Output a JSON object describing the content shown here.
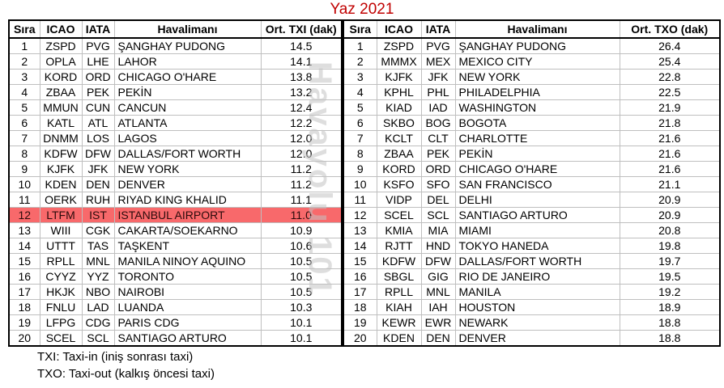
{
  "title": "Yaz 2021",
  "colors": {
    "title": "#C00000",
    "highlight_bg": "#F8696B",
    "gridline": "#BFBFBF",
    "border": "#000000"
  },
  "watermark": "Havayolu 101",
  "footnotes": [
    "TXI: Taxi-in (iniş sonrası taxi)",
    "TXO: Taxi-out (kalkış öncesi taxi)"
  ],
  "chart_data": [
    {
      "type": "table",
      "name": "taxi-in-ranking",
      "columns": [
        "Sıra",
        "ICAO",
        "IATA",
        "Havalimanı",
        "Ort. TXI (dak)"
      ],
      "rows": [
        [
          "1",
          "ZSPD",
          "PVG",
          "ŞANGHAY PUDONG",
          "14.5"
        ],
        [
          "2",
          "OPLA",
          "LHE",
          "LAHOR",
          "14.1"
        ],
        [
          "3",
          "KORD",
          "ORD",
          "CHICAGO O'HARE",
          "13.8"
        ],
        [
          "4",
          "ZBAA",
          "PEK",
          "PEKİN",
          "13.2"
        ],
        [
          "5",
          "MMUN",
          "CUN",
          "CANCUN",
          "12.4"
        ],
        [
          "6",
          "KATL",
          "ATL",
          "ATLANTA",
          "12.2"
        ],
        [
          "7",
          "DNMM",
          "LOS",
          "LAGOS",
          "12.0"
        ],
        [
          "8",
          "KDFW",
          "DFW",
          "DALLAS/FORT WORTH",
          "12.0"
        ],
        [
          "9",
          "KJFK",
          "JFK",
          "NEW YORK",
          "11.2"
        ],
        [
          "10",
          "KDEN",
          "DEN",
          "DENVER",
          "11.2"
        ],
        [
          "11",
          "OERK",
          "RUH",
          "RIYAD KING KHALID",
          "11.1"
        ],
        [
          "12",
          "LTFM",
          "IST",
          "ISTANBUL AIRPORT",
          "11.0"
        ],
        [
          "13",
          "WIII",
          "CGK",
          "CAKARTA/SOEKARNO",
          "10.9"
        ],
        [
          "14",
          "UTTT",
          "TAS",
          "TAŞKENT",
          "10.6"
        ],
        [
          "15",
          "RPLL",
          "MNL",
          "MANILA NINOY AQUINO",
          "10.5"
        ],
        [
          "16",
          "CYYZ",
          "YYZ",
          "TORONTO",
          "10.5"
        ],
        [
          "17",
          "HKJK",
          "NBO",
          "NAIROBI",
          "10.5"
        ],
        [
          "18",
          "FNLU",
          "LAD",
          "LUANDA",
          "10.3"
        ],
        [
          "19",
          "LFPG",
          "CDG",
          "PARIS CDG",
          "10.1"
        ],
        [
          "20",
          "SCEL",
          "SCL",
          "SANTIAGO ARTURO",
          "10.1"
        ]
      ],
      "highlight_row": {
        "rank": "12",
        "icao": "LTFM"
      }
    },
    {
      "type": "table",
      "name": "taxi-out-ranking",
      "columns": [
        "Sıra",
        "ICAO",
        "IATA",
        "Havalimanı",
        "Ort. TXO (dak)"
      ],
      "rows": [
        [
          "1",
          "ZSPD",
          "PVG",
          "ŞANGHAY PUDONG",
          "26.4"
        ],
        [
          "2",
          "MMMX",
          "MEX",
          "MEXICO CITY",
          "25.4"
        ],
        [
          "3",
          "KJFK",
          "JFK",
          "NEW YORK",
          "22.8"
        ],
        [
          "4",
          "KPHL",
          "PHL",
          "PHILADELPHIA",
          "22.5"
        ],
        [
          "5",
          "KIAD",
          "IAD",
          "WASHINGTON",
          "21.9"
        ],
        [
          "6",
          "SKBO",
          "BOG",
          "BOGOTA",
          "21.8"
        ],
        [
          "7",
          "KCLT",
          "CLT",
          "CHARLOTTE",
          "21.6"
        ],
        [
          "8",
          "ZBAA",
          "PEK",
          "PEKİN",
          "21.6"
        ],
        [
          "9",
          "KORD",
          "ORD",
          "CHICAGO O'HARE",
          "21.6"
        ],
        [
          "10",
          "KSFO",
          "SFO",
          "SAN FRANCISCO",
          "21.1"
        ],
        [
          "11",
          "VIDP",
          "DEL",
          "DELHI",
          "20.9"
        ],
        [
          "12",
          "SCEL",
          "SCL",
          "SANTIAGO ARTURO",
          "20.9"
        ],
        [
          "13",
          "KMIA",
          "MIA",
          "MIAMI",
          "20.8"
        ],
        [
          "14",
          "RJTT",
          "HND",
          "TOKYO HANEDA",
          "19.8"
        ],
        [
          "15",
          "KDFW",
          "DFW",
          "DALLAS/FORT WORTH",
          "19.7"
        ],
        [
          "16",
          "SBGL",
          "GIG",
          "RIO DE JANEIRO",
          "19.5"
        ],
        [
          "17",
          "RPLL",
          "MNL",
          "MANILA",
          "19.2"
        ],
        [
          "18",
          "KIAH",
          "IAH",
          "HOUSTON",
          "18.9"
        ],
        [
          "19",
          "KEWR",
          "EWR",
          "NEWARK",
          "18.8"
        ],
        [
          "20",
          "KDEN",
          "DEN",
          "DENVER",
          "18.8"
        ]
      ],
      "highlight_row": null
    }
  ]
}
